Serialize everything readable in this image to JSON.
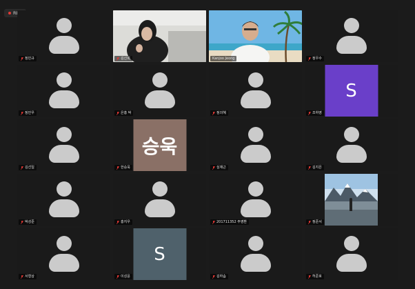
{
  "recording": {
    "label": "REC"
  },
  "colors": {
    "active_border": "#2ecc71",
    "muted_icon": "#e53935"
  },
  "participants": [
    {
      "name": "정민규"
    },
    {
      "name": "김신희"
    },
    {
      "name": "Kanjoo Jeong"
    },
    {
      "name": "정우수"
    },
    {
      "name": "정민우"
    },
    {
      "name": "은홍 박"
    },
    {
      "name": "정의혜"
    },
    {
      "name": "조하영",
      "initial": "S"
    },
    {
      "name": "김선일"
    },
    {
      "name": "한승욱",
      "initial": "승욱"
    },
    {
      "name": "심재근"
    },
    {
      "name": "김지은"
    },
    {
      "name": "박성준"
    },
    {
      "name": "홍지우"
    },
    {
      "name": "201711352 주영환"
    },
    {
      "name": "정준서"
    },
    {
      "name": "서형상"
    },
    {
      "name": "이성윤",
      "initial": "S"
    },
    {
      "name": "김하솜"
    },
    {
      "name": "허준호"
    }
  ]
}
